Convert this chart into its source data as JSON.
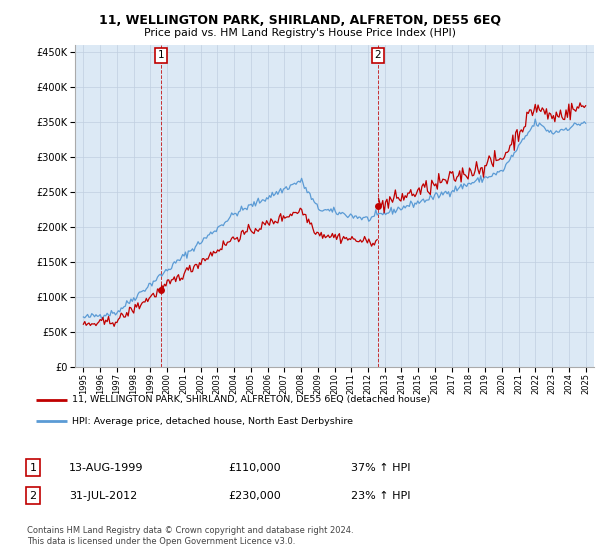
{
  "title": "11, WELLINGTON PARK, SHIRLAND, ALFRETON, DE55 6EQ",
  "subtitle": "Price paid vs. HM Land Registry's House Price Index (HPI)",
  "legend_line1": "11, WELLINGTON PARK, SHIRLAND, ALFRETON, DE55 6EQ (detached house)",
  "legend_line2": "HPI: Average price, detached house, North East Derbyshire",
  "footer": "Contains HM Land Registry data © Crown copyright and database right 2024.\nThis data is licensed under the Open Government Licence v3.0.",
  "sale1_date": "13-AUG-1999",
  "sale1_price": "£110,000",
  "sale1_hpi": "37% ↑ HPI",
  "sale2_date": "31-JUL-2012",
  "sale2_price": "£230,000",
  "sale2_hpi": "23% ↑ HPI",
  "hpi_color": "#5b9bd5",
  "price_color": "#c00000",
  "plot_bg": "#dce9f5",
  "sale1_year": 1999.62,
  "sale1_value": 110000,
  "sale2_year": 2012.58,
  "sale2_value": 230000,
  "yticks": [
    0,
    50000,
    100000,
    150000,
    200000,
    250000,
    300000,
    350000,
    400000,
    450000
  ],
  "ytick_labels": [
    "£0",
    "£50K",
    "£100K",
    "£150K",
    "£200K",
    "£250K",
    "£300K",
    "£350K",
    "£400K",
    "£450K"
  ],
  "xmin": 1994.5,
  "xmax": 2025.5,
  "ymin": 0,
  "ymax": 460000
}
